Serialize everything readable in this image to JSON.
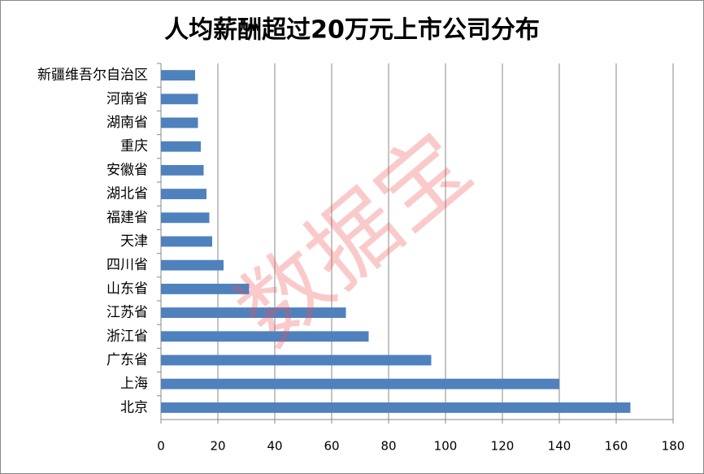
{
  "chart_data": {
    "type": "bar",
    "orientation": "horizontal",
    "title": "人均薪酬超过20万元上市公司分布",
    "watermark": "数据宝",
    "categories": [
      "新疆维吾尔自治区",
      "河南省",
      "湖南省",
      "重庆",
      "安徽省",
      "湖北省",
      "福建省",
      "天津",
      "四川省",
      "山东省",
      "江苏省",
      "浙江省",
      "广东省",
      "上海",
      "北京"
    ],
    "values": [
      12,
      13,
      13,
      14,
      15,
      16,
      17,
      18,
      22,
      31,
      65,
      73,
      95,
      140,
      165
    ],
    "color": "#4f81bd",
    "xlim": [
      0,
      180
    ],
    "xticks": [
      0,
      20,
      40,
      60,
      80,
      100,
      120,
      140,
      160,
      180
    ],
    "grid": true
  }
}
